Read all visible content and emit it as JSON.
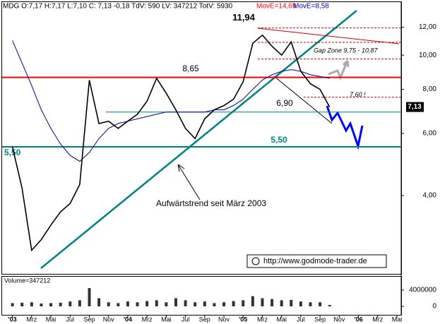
{
  "header": {
    "quote": "MDG O:7,17 H:7,17 L:7,10 C: 7,13 -0,18 TdV: 590 LV: 347212 TotV: 5930",
    "ma1": "MovE=14,69",
    "ma2": "MovE=8,58"
  },
  "chart_data": [
    {
      "type": "line",
      "log_scale": true,
      "x": [
        "2003-01",
        "2003-02",
        "2003-03",
        "2003-04",
        "2003-05",
        "2003-06",
        "2003-07",
        "2003-08",
        "2003-09",
        "2003-10",
        "2003-11",
        "2003-12",
        "2004-01",
        "2004-02",
        "2004-03",
        "2004-04",
        "2004-05",
        "2004-06",
        "2004-07",
        "2004-08",
        "2004-09",
        "2004-10",
        "2004-11",
        "2004-12",
        "2005-01",
        "2005-02",
        "2005-03",
        "2005-04",
        "2005-05",
        "2005-06",
        "2005-07",
        "2005-08",
        "2005-09",
        "2005-10"
      ],
      "series": [
        {
          "color": "#000000",
          "values": [
            5.5,
            4.2,
            2.8,
            3.0,
            3.3,
            3.6,
            3.8,
            4.3,
            8.5,
            6.4,
            6.5,
            6.2,
            6.5,
            6.8,
            7.4,
            8.6,
            7.8,
            7.0,
            6.2,
            5.8,
            6.6,
            7.0,
            7.2,
            7.5,
            8.4,
            10.8,
            11.4,
            10.6,
            10.0,
            10.9,
            9.0,
            8.3,
            8.0,
            7.13
          ]
        },
        {
          "color": "#00008b",
          "values": [
            11.0,
            9.5,
            8.2,
            7.0,
            6.2,
            5.6,
            5.2,
            5.0,
            5.3,
            5.8,
            6.2,
            6.4,
            6.5,
            6.6,
            6.7,
            6.8,
            6.9,
            6.9,
            6.9,
            6.9,
            6.9,
            7.0,
            7.0,
            7.2,
            7.5,
            8.0,
            8.5,
            8.8,
            9.0,
            9.1,
            9.0,
            8.8,
            8.7,
            8.6
          ]
        }
      ],
      "xlim": [
        "2002-12",
        "2006-05"
      ],
      "ylim": [
        2.4,
        14.2
      ],
      "yticks": [
        {
          "value": 4,
          "label": "4,00"
        },
        {
          "value": 6,
          "label": "6,00"
        },
        {
          "value": 8,
          "label": "8,00"
        },
        {
          "value": 10,
          "label": "10,00"
        },
        {
          "value": 12,
          "label": "12,00"
        }
      ],
      "xticks": [
        {
          "value": "2003-01",
          "label": "'03"
        },
        {
          "value": "2003-03",
          "label": "Mrz"
        },
        {
          "value": "2003-05",
          "label": "Mai"
        },
        {
          "value": "2003-07",
          "label": "Jul"
        },
        {
          "value": "2003-09",
          "label": "Sep"
        },
        {
          "value": "2003-11",
          "label": "Nov"
        },
        {
          "value": "2004-01",
          "label": "'04"
        },
        {
          "value": "2004-03",
          "label": "Mrz"
        },
        {
          "value": "2004-05",
          "label": "Mai"
        },
        {
          "value": "2004-07",
          "label": "Jul"
        },
        {
          "value": "2004-09",
          "label": "Sep"
        },
        {
          "value": "2004-11",
          "label": "Nov"
        },
        {
          "value": "2005-01",
          "label": "'05"
        },
        {
          "value": "2005-03",
          "label": "Mrz"
        },
        {
          "value": "2005-05",
          "label": "Mai"
        },
        {
          "value": "2005-07",
          "label": "Jul"
        },
        {
          "value": "2005-09",
          "label": "Sep"
        },
        {
          "value": "2005-11",
          "label": "Nov"
        },
        {
          "value": "2006-01",
          "label": "'06"
        },
        {
          "value": "2006-03",
          "label": "Mrz"
        },
        {
          "value": "2006-05",
          "label": "Mai"
        }
      ],
      "levels": [
        {
          "value": 8.65,
          "label": "8,65",
          "color": "#ff0000",
          "style": "solid"
        },
        {
          "value": 5.5,
          "label": "5,50",
          "color": "#008080",
          "style": "solid"
        },
        {
          "value": 6.9,
          "label": "6,90",
          "color": "#008080",
          "style": "thin"
        },
        {
          "value": 11.94,
          "label": "11,94",
          "color": "#cc0000",
          "style": "dashed"
        },
        {
          "value": 10.87,
          "label": "10,87",
          "color": "#cc0000",
          "style": "dashed"
        },
        {
          "value": 9.75,
          "label": "9,75",
          "color": "#cc0000",
          "style": "dashed"
        },
        {
          "value": 7.6,
          "label": "7,60 !",
          "color": "#cc0000",
          "style": "dashed"
        }
      ],
      "last": {
        "value": 7.13,
        "label": "7,13"
      },
      "annotations": [
        "Gap Zone 9,75 - 10,87",
        "Aufwärtstrend seit März 2003",
        "http://www.godmode-trader.de"
      ]
    },
    {
      "type": "bar",
      "title": "Volume=347212",
      "x": [
        "2003-01",
        "2003-02",
        "2003-03",
        "2003-04",
        "2003-05",
        "2003-06",
        "2003-07",
        "2003-08",
        "2003-09",
        "2003-10",
        "2003-11",
        "2003-12",
        "2004-01",
        "2004-02",
        "2004-03",
        "2004-04",
        "2004-05",
        "2004-06",
        "2004-07",
        "2004-08",
        "2004-09",
        "2004-10",
        "2004-11",
        "2004-12",
        "2005-01",
        "2005-02",
        "2005-03",
        "2005-04",
        "2005-05",
        "2005-06",
        "2005-07",
        "2005-08",
        "2005-09",
        "2005-10"
      ],
      "values": [
        800000,
        900000,
        1000000,
        700000,
        800000,
        900000,
        1200000,
        1500000,
        4500000,
        2000000,
        1000000,
        800000,
        1200000,
        1000000,
        1300000,
        1500000,
        1000000,
        2000000,
        1500000,
        1000000,
        1200000,
        800000,
        1000000,
        1300000,
        1500000,
        2500000,
        2000000,
        1800000,
        1500000,
        1600000,
        1200000,
        1000000,
        1000000,
        350000
      ],
      "color": "#333333",
      "ylim": [
        0,
        7300000
      ],
      "yticks": [
        0,
        4000000
      ]
    }
  ]
}
